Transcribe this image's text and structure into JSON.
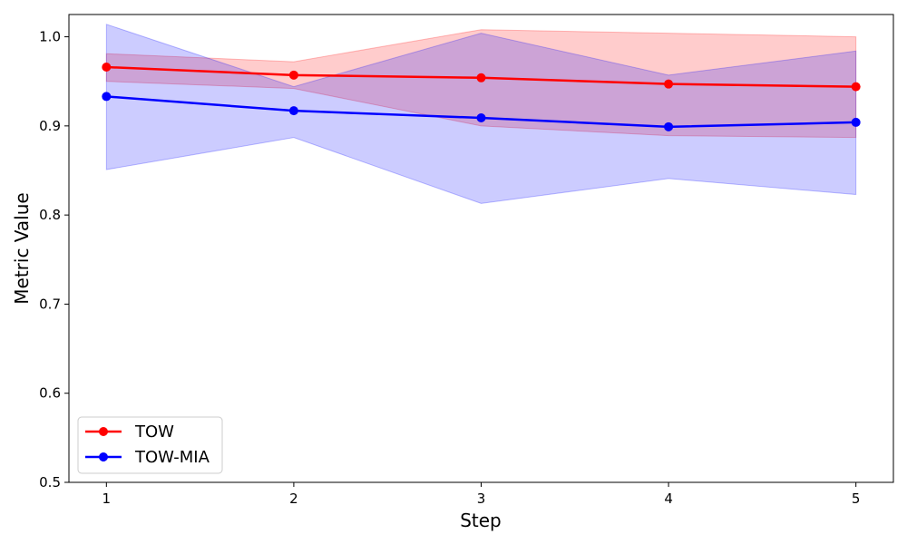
{
  "chart_data": {
    "type": "line",
    "title": "",
    "xlabel": "Step",
    "ylabel": "Metric Value",
    "x": [
      1,
      2,
      3,
      4,
      5
    ],
    "xlim": [
      0.8,
      5.2
    ],
    "ylim": [
      0.5,
      1.025
    ],
    "xticks": [
      1,
      2,
      3,
      4,
      5
    ],
    "yticks": [
      0.5,
      0.6,
      0.7,
      0.8,
      0.9,
      1.0
    ],
    "ytick_labels": [
      "0.5",
      "0.6",
      "0.7",
      "0.8",
      "0.9",
      "1.0"
    ],
    "grid": false,
    "legend_position": "lower-left",
    "series": [
      {
        "name": "TOW",
        "color": "#ff0000",
        "band_color": "#ff0000",
        "values": [
          0.966,
          0.957,
          0.954,
          0.947,
          0.944
        ],
        "lower": [
          0.95,
          0.942,
          0.9,
          0.889,
          0.887
        ],
        "upper": [
          0.981,
          0.972,
          1.008,
          1.004,
          1.0
        ]
      },
      {
        "name": "TOW-MIA",
        "color": "#0000ff",
        "band_color": "#0000ff",
        "values": [
          0.933,
          0.917,
          0.909,
          0.899,
          0.904
        ],
        "lower": [
          0.851,
          0.887,
          0.813,
          0.841,
          0.823
        ],
        "upper": [
          1.014,
          0.944,
          1.004,
          0.957,
          0.984
        ]
      }
    ]
  }
}
